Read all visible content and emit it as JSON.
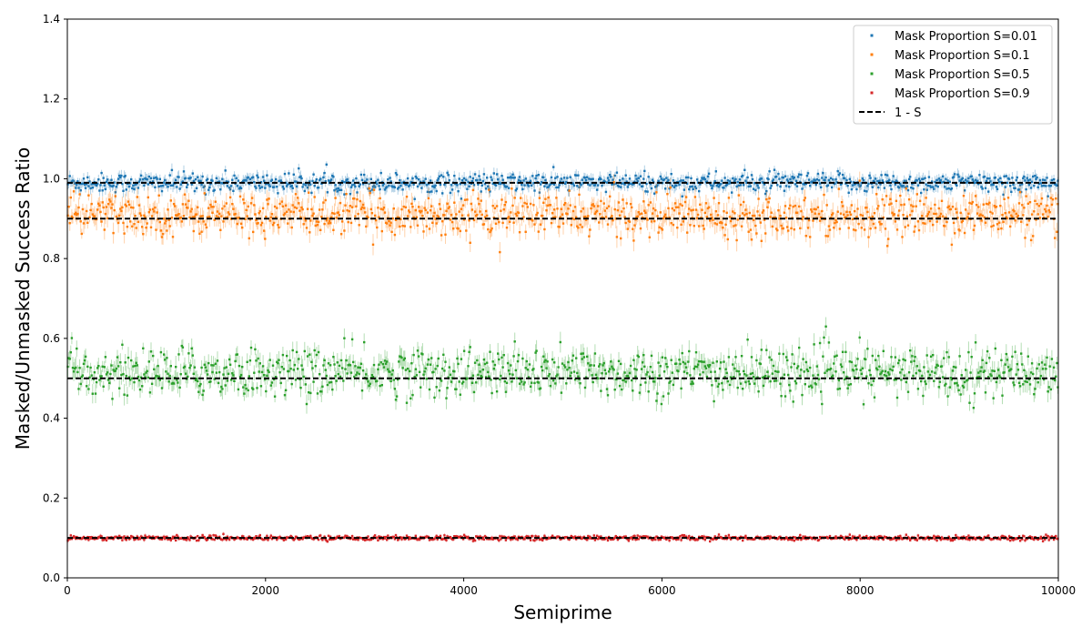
{
  "chart_data": {
    "type": "scatter",
    "title": "",
    "xlabel": "Semiprime",
    "ylabel": "Masked/Unmasked Success Ratio",
    "xlim": [
      0,
      10000
    ],
    "ylim": [
      0,
      1.4
    ],
    "xticks": [
      0,
      2000,
      4000,
      6000,
      8000,
      10000
    ],
    "xtick_labels": [
      "0",
      "2000",
      "4000",
      "6000",
      "8000",
      "10000"
    ],
    "yticks": [
      0.0,
      0.2,
      0.4,
      0.6,
      0.8,
      1.0,
      1.2,
      1.4
    ],
    "ytick_labels": [
      "0.0",
      "0.2",
      "0.4",
      "0.6",
      "0.8",
      "1.0",
      "1.2",
      "1.4"
    ],
    "grid": false,
    "legend_position": "top-right",
    "point_count_per_series": 1000,
    "series": [
      {
        "name": "Mask Proportion S=0.01",
        "color": "#1f77b4",
        "center": 0.99,
        "spread": 0.012,
        "error": 0.012
      },
      {
        "name": "Mask Proportion S=0.1",
        "color": "#ff7f0e",
        "center": 0.91,
        "spread": 0.025,
        "error": 0.02
      },
      {
        "name": "Mask Proportion S=0.5",
        "color": "#2ca02c",
        "center": 0.515,
        "spread": 0.03,
        "error": 0.02
      },
      {
        "name": "Mask Proportion S=0.9",
        "color": "#d62728",
        "center": 0.1,
        "spread": 0.003,
        "error": 0.004
      }
    ],
    "reference_line": {
      "name": "1 - S",
      "style": "dashed",
      "color": "#000000",
      "values": [
        0.99,
        0.9,
        0.5,
        0.1
      ]
    }
  }
}
